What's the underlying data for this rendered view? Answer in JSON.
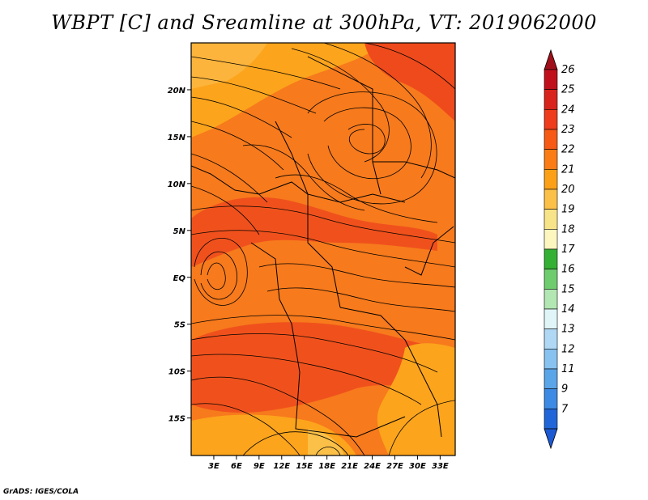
{
  "title": "WBPT [C] and Sreamline at 300hPa, VT: 2019062000",
  "credit": "GrADS: IGES/COLA",
  "map": {
    "lat_range": [
      -19,
      25
    ],
    "lon_range": [
      0,
      35
    ],
    "lat_ticks": [
      {
        "value": 20,
        "label": "20N"
      },
      {
        "value": 15,
        "label": "15N"
      },
      {
        "value": 10,
        "label": "10N"
      },
      {
        "value": 5,
        "label": "5N"
      },
      {
        "value": 0,
        "label": "EQ"
      },
      {
        "value": -5,
        "label": "5S"
      },
      {
        "value": -10,
        "label": "10S"
      },
      {
        "value": -15,
        "label": "15S"
      }
    ],
    "lon_ticks": [
      {
        "value": 3,
        "label": "3E"
      },
      {
        "value": 6,
        "label": "6E"
      },
      {
        "value": 9,
        "label": "9E"
      },
      {
        "value": 12,
        "label": "12E"
      },
      {
        "value": 15,
        "label": "15E"
      },
      {
        "value": 18,
        "label": "18E"
      },
      {
        "value": 21,
        "label": "21E"
      },
      {
        "value": 24,
        "label": "24E"
      },
      {
        "value": 27,
        "label": "27E"
      },
      {
        "value": 30,
        "label": "30E"
      },
      {
        "value": 33,
        "label": "33E"
      }
    ]
  },
  "colorbar": {
    "labels": [
      "26",
      "25",
      "24",
      "23",
      "22",
      "21",
      "20",
      "19",
      "18",
      "17",
      "16",
      "15",
      "14",
      "13",
      "12",
      "11",
      "9",
      "7"
    ],
    "colors": [
      "#c0101c",
      "#d8241c",
      "#ee3c1c",
      "#f75a14",
      "#fb7c14",
      "#fca018",
      "#fbc048",
      "#f8e488",
      "#fdf7bf",
      "#34b034",
      "#6ecc6e",
      "#b2e6b2",
      "#e0f5f8",
      "#b0d8f4",
      "#88c2f0",
      "#5aa4e8",
      "#3c8ae4",
      "#2066d8"
    ],
    "top_arrow_color": "#a0101a",
    "bottom_arrow_color": "#1c5ad4"
  }
}
